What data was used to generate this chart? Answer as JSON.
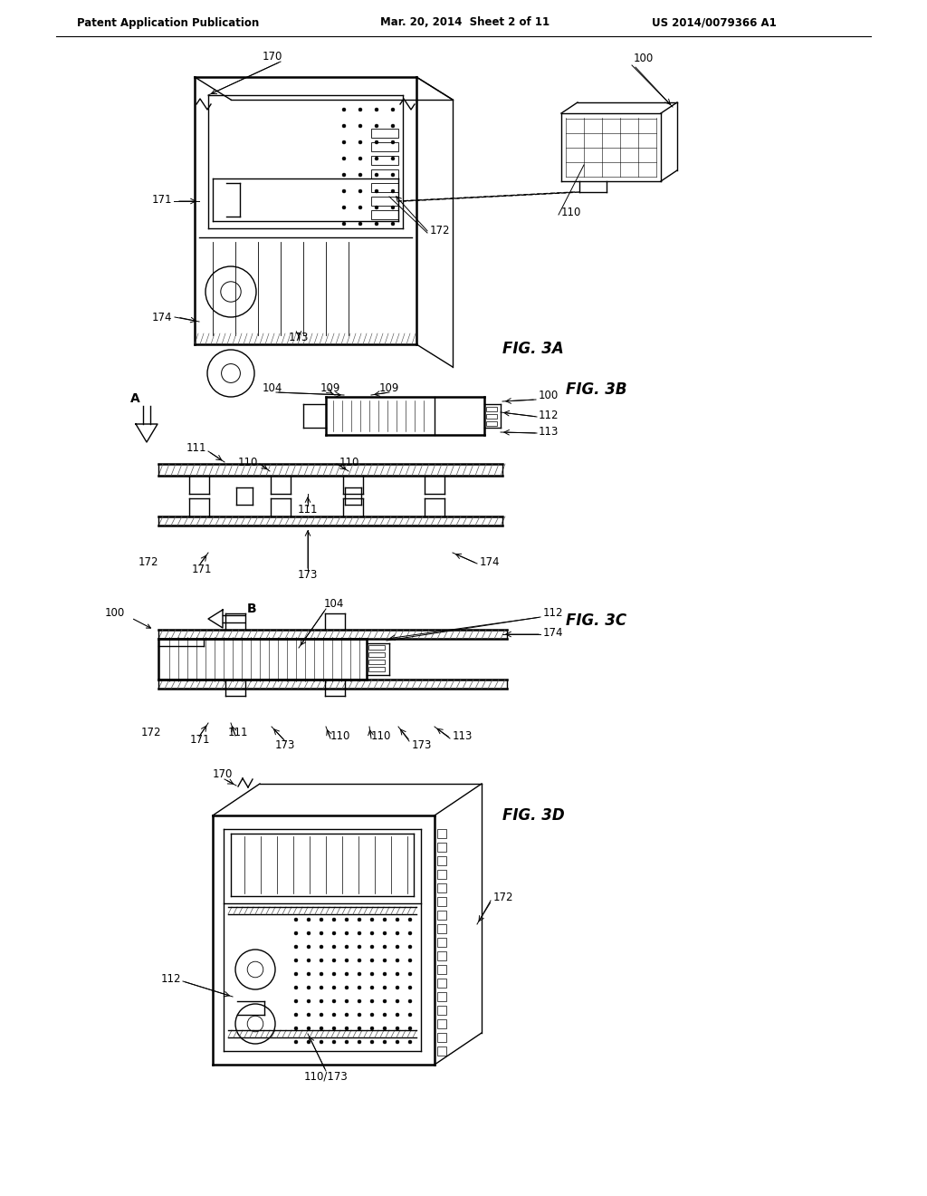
{
  "bg_color": "#ffffff",
  "header_left": "Patent Application Publication",
  "header_mid": "Mar. 20, 2014  Sheet 2 of 11",
  "header_right": "US 2014/0079366 A1",
  "line_color": "#000000",
  "annotation_fontsize": 8.5,
  "header_fontsize": 8.5,
  "fig_label_fontsize": 12,
  "lw": 1.0,
  "blw": 1.8
}
